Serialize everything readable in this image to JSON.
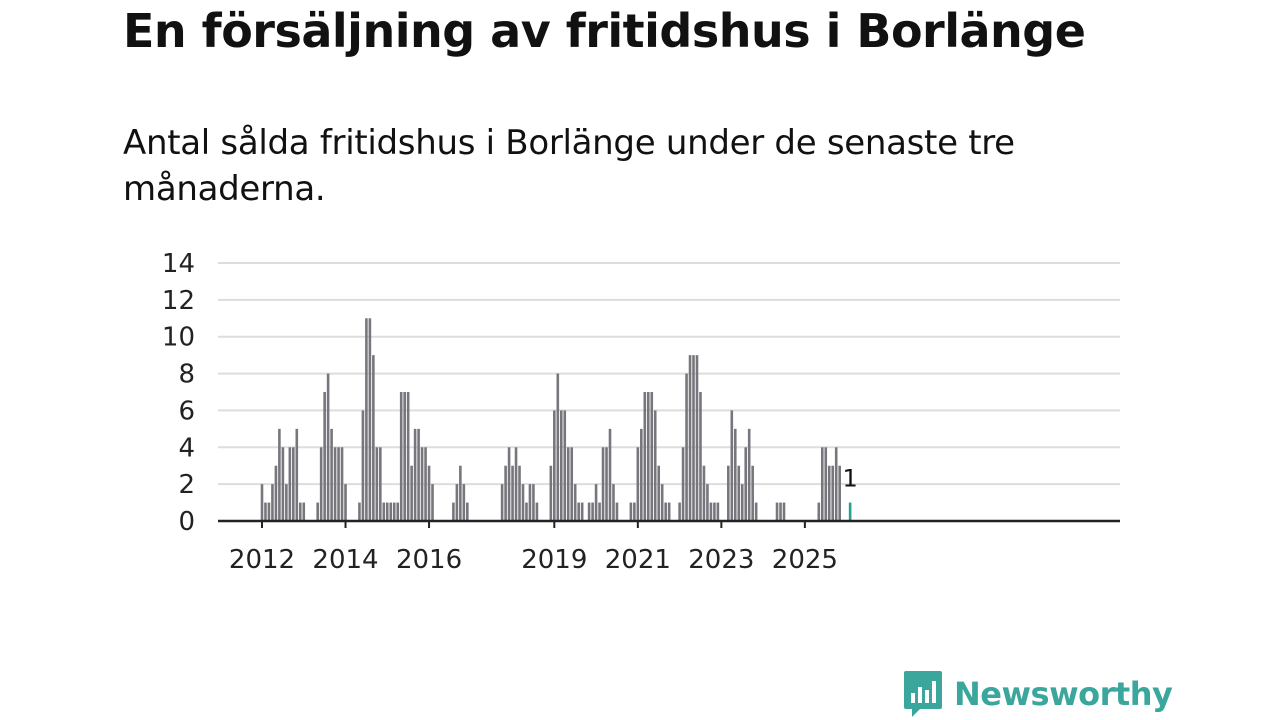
{
  "title": "En försäljning av fritidshus i Borlänge",
  "subtitle": "Antal sålda fritidshus i Borlänge under de senaste tre månaderna.",
  "brand": {
    "name": "Newsworthy",
    "color": "#3aa69c"
  },
  "colors": {
    "bar": "#77767c",
    "highlight": "#2a9d8f",
    "grid": "#dddddd",
    "axis": "#222222"
  },
  "chart_data": {
    "type": "bar",
    "title": "",
    "xlabel": "",
    "ylabel": "",
    "ylim": [
      0,
      14
    ],
    "yticks": [
      0,
      2,
      4,
      6,
      8,
      10,
      12,
      14
    ],
    "grid": true,
    "x_tick_labels": [
      "2012",
      "2014",
      "2016",
      "2019",
      "2021",
      "2023",
      "2025"
    ],
    "start": "2012-01",
    "end": "2025-01",
    "values": [
      2,
      1,
      1,
      2,
      3,
      5,
      4,
      2,
      4,
      4,
      5,
      1,
      1,
      0,
      0,
      0,
      1,
      4,
      7,
      8,
      5,
      4,
      4,
      4,
      2,
      0,
      0,
      0,
      1,
      6,
      11,
      11,
      9,
      4,
      4,
      1,
      1,
      1,
      1,
      1,
      7,
      7,
      7,
      3,
      5,
      5,
      4,
      4,
      3,
      2,
      0,
      0,
      0,
      0,
      0,
      1,
      2,
      3,
      2,
      1,
      0,
      0,
      0,
      0,
      0,
      0,
      0,
      0,
      0,
      2,
      3,
      4,
      3,
      4,
      3,
      2,
      1,
      2,
      2,
      1,
      0,
      0,
      0,
      3,
      6,
      8,
      6,
      6,
      4,
      4,
      2,
      1,
      1,
      0,
      1,
      1,
      2,
      1,
      4,
      4,
      5,
      2,
      1,
      0,
      0,
      0,
      1,
      1,
      4,
      5,
      7,
      7,
      7,
      6,
      3,
      2,
      1,
      1,
      0,
      0,
      1,
      4,
      8,
      9,
      9,
      9,
      7,
      3,
      2,
      1,
      1,
      1,
      0,
      0,
      3,
      6,
      5,
      3,
      2,
      4,
      5,
      3,
      1,
      0,
      0,
      0,
      0,
      0,
      1,
      1,
      1,
      0,
      0,
      0,
      0,
      0,
      0,
      0,
      0,
      0,
      1,
      4,
      4,
      3,
      3,
      4,
      3,
      0,
      0,
      1
    ],
    "annotation": {
      "value": 1,
      "label": "1"
    }
  }
}
